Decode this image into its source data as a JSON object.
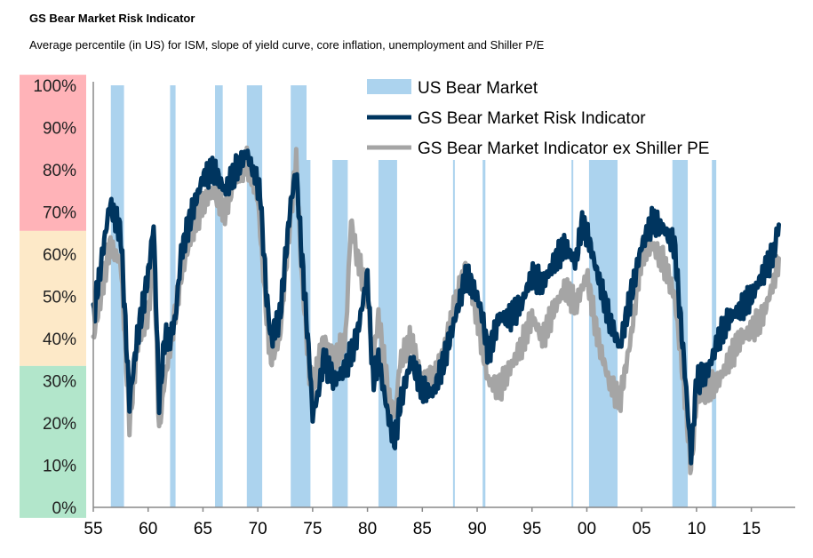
{
  "title": "GS Bear Market Risk Indicator",
  "subtitle": "Average percentile (in US) for ISM, slope of yield curve, core inflation, unemployment and Shiller P/E",
  "chart_data": {
    "type": "line",
    "xlim": [
      1955,
      2019
    ],
    "ylim": [
      0,
      100
    ],
    "x_ticks": [
      {
        "value": 1955,
        "label": "55"
      },
      {
        "value": 1960,
        "label": "60"
      },
      {
        "value": 1965,
        "label": "65"
      },
      {
        "value": 1970,
        "label": "70"
      },
      {
        "value": 1975,
        "label": "75"
      },
      {
        "value": 1980,
        "label": "80"
      },
      {
        "value": 1985,
        "label": "85"
      },
      {
        "value": 1990,
        "label": "90"
      },
      {
        "value": 1995,
        "label": "95"
      },
      {
        "value": 2000,
        "label": "00"
      },
      {
        "value": 2005,
        "label": "05"
      },
      {
        "value": 2010,
        "label": "10"
      },
      {
        "value": 2015,
        "label": "15"
      }
    ],
    "y_ticks": [
      {
        "value": 100,
        "label": "100%"
      },
      {
        "value": 90,
        "label": "90%"
      },
      {
        "value": 80,
        "label": "80%"
      },
      {
        "value": 70,
        "label": "70%"
      },
      {
        "value": 60,
        "label": "60%"
      },
      {
        "value": 50,
        "label": "50%"
      },
      {
        "value": 40,
        "label": "40%"
      },
      {
        "value": 30,
        "label": "30%"
      },
      {
        "value": 20,
        "label": "20%"
      },
      {
        "value": 10,
        "label": "10%"
      },
      {
        "value": 0,
        "label": "0%"
      }
    ],
    "zones": [
      {
        "from": 65.5,
        "to": 102.5,
        "color": "#ffb3b8"
      },
      {
        "from": 33.5,
        "to": 65.5,
        "color": "#fde9c8"
      },
      {
        "from": -2.5,
        "to": 33.5,
        "color": "#b2e6cb"
      }
    ],
    "legend_position": "top-right",
    "bear_markets": {
      "name": "US Bear Market",
      "color": "#acd3ee",
      "periods": [
        [
          1956.6,
          1957.8
        ],
        [
          1962.0,
          1962.5
        ],
        [
          1966.1,
          1966.8
        ],
        [
          1969.0,
          1970.4
        ],
        [
          1973.0,
          1974.8
        ],
        [
          1976.8,
          1978.2
        ],
        [
          1981.0,
          1982.7
        ],
        [
          1987.8,
          1987.95
        ],
        [
          1990.5,
          1990.75
        ],
        [
          1998.6,
          1998.75
        ],
        [
          2000.2,
          2002.8
        ],
        [
          2007.8,
          2009.2
        ],
        [
          2011.4,
          2011.8
        ]
      ]
    },
    "series": [
      {
        "name": "GS Bear Market Risk Indicator",
        "color": "#00355f",
        "x": [
          1955,
          1956.5,
          1957.5,
          1958.3,
          1959,
          1960,
          1960.5,
          1961,
          1961.5,
          1962,
          1962.5,
          1963,
          1964,
          1965,
          1966,
          1967,
          1968,
          1969,
          1969.8,
          1970.2,
          1970.8,
          1971.2,
          1972,
          1973,
          1973.5,
          1974,
          1974.7,
          1975,
          1975.5,
          1976,
          1977,
          1978,
          1979,
          1980,
          1980.5,
          1981,
          1982,
          1982.5,
          1983,
          1984,
          1985,
          1986,
          1987,
          1988,
          1989,
          1990,
          1990.5,
          1991,
          1992,
          1993,
          1994,
          1995,
          1996,
          1997,
          1998,
          1999,
          1999.5,
          2000,
          2001,
          2002,
          2003,
          2004,
          2005,
          2006,
          2007,
          2008,
          2009,
          2009.5,
          2010,
          2011,
          2012,
          2013,
          2014,
          2015,
          2016,
          2017,
          2017.5
        ],
        "y": [
          45,
          72,
          65,
          25,
          40,
          55,
          67,
          25,
          40,
          40,
          45,
          60,
          70,
          78,
          80,
          75,
          80,
          84,
          78,
          75,
          50,
          40,
          45,
          72,
          80,
          60,
          35,
          22,
          27,
          35,
          30,
          33,
          40,
          55,
          30,
          35,
          20,
          16,
          25,
          35,
          28,
          27,
          35,
          45,
          55,
          50,
          45,
          36,
          45,
          45,
          48,
          55,
          53,
          58,
          62,
          58,
          67,
          65,
          55,
          45,
          38,
          50,
          62,
          68,
          66,
          62,
          30,
          12,
          30,
          32,
          40,
          45,
          47,
          50,
          55,
          60,
          67
        ]
      },
      {
        "name": "GS Bear Market Indicator ex Shiller PE",
        "color": "#a5a5a5",
        "x": [
          1955,
          1956.5,
          1957.5,
          1958.3,
          1959,
          1960,
          1960.5,
          1961,
          1961.5,
          1962,
          1963,
          1964,
          1965,
          1966,
          1967,
          1968,
          1969,
          1970,
          1970.8,
          1971.2,
          1972,
          1973,
          1973.5,
          1974,
          1974.7,
          1975,
          1976,
          1977,
          1978,
          1978.5,
          1979,
          1980,
          1980.5,
          1981,
          1982,
          1982.5,
          1983,
          1984,
          1985,
          1986,
          1987,
          1988,
          1989,
          1990,
          1991,
          1992,
          1993,
          1994,
          1995,
          1996,
          1997,
          1998,
          1999,
          2000,
          2001,
          2002,
          2003,
          2004,
          2005,
          2006,
          2007,
          2008,
          2009,
          2009.5,
          2010,
          2011,
          2012,
          2013,
          2014,
          2015,
          2016,
          2017,
          2017.5
        ],
        "y": [
          40,
          62,
          58,
          20,
          38,
          45,
          63,
          18,
          30,
          38,
          55,
          65,
          72,
          75,
          70,
          78,
          82,
          73,
          45,
          35,
          40,
          70,
          82,
          55,
          32,
          28,
          40,
          35,
          40,
          68,
          60,
          50,
          35,
          45,
          25,
          22,
          35,
          40,
          30,
          30,
          38,
          48,
          58,
          45,
          30,
          28,
          33,
          38,
          45,
          40,
          47,
          52,
          48,
          55,
          40,
          30,
          25,
          40,
          60,
          62,
          58,
          50,
          25,
          9,
          25,
          28,
          30,
          35,
          40,
          42,
          45,
          53,
          59
        ]
      }
    ]
  }
}
